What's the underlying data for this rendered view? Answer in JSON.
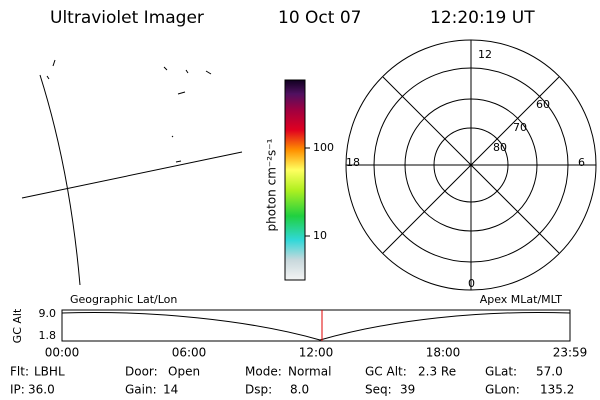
{
  "header": {
    "title": "Ultraviolet Imager",
    "date": "10 Oct 07",
    "time": "12:20:19 UT"
  },
  "colorbar": {
    "label": "photon cm⁻²s⁻¹",
    "ticks": [
      "100",
      "10"
    ]
  },
  "polar": {
    "mlt_labels": [
      "12",
      "18",
      "6",
      "0"
    ],
    "mlat_labels": [
      "60",
      "70",
      "80"
    ]
  },
  "altitude_plot": {
    "y_label": "GC Alt",
    "y_ticks": [
      "9.0",
      "1.8"
    ],
    "left_title": "Geographic Lat/Lon",
    "right_title": "Apex MLat/MLT",
    "x_ticks": [
      "00:00",
      "06:00",
      "12:00",
      "18:00",
      "23:59"
    ]
  },
  "status": {
    "rows": [
      [
        {
          "label": "Flt:",
          "value": "LBHL"
        },
        {
          "label": "Door:",
          "value": "Open"
        },
        {
          "label": "Mode:",
          "value": "Normal"
        },
        {
          "label": "GC Alt:",
          "value": "2.3 Re"
        },
        {
          "label": "GLat:",
          "value": "57.0"
        }
      ],
      [
        {
          "label": "IP:",
          "value": "36.0"
        },
        {
          "label": "Gain:",
          "value": "14"
        },
        {
          "label": "Dsp:",
          "value": "8.0"
        },
        {
          "label": "Seq:",
          "value": "39"
        },
        {
          "label": "GLon:",
          "value": "135.2"
        }
      ]
    ]
  }
}
